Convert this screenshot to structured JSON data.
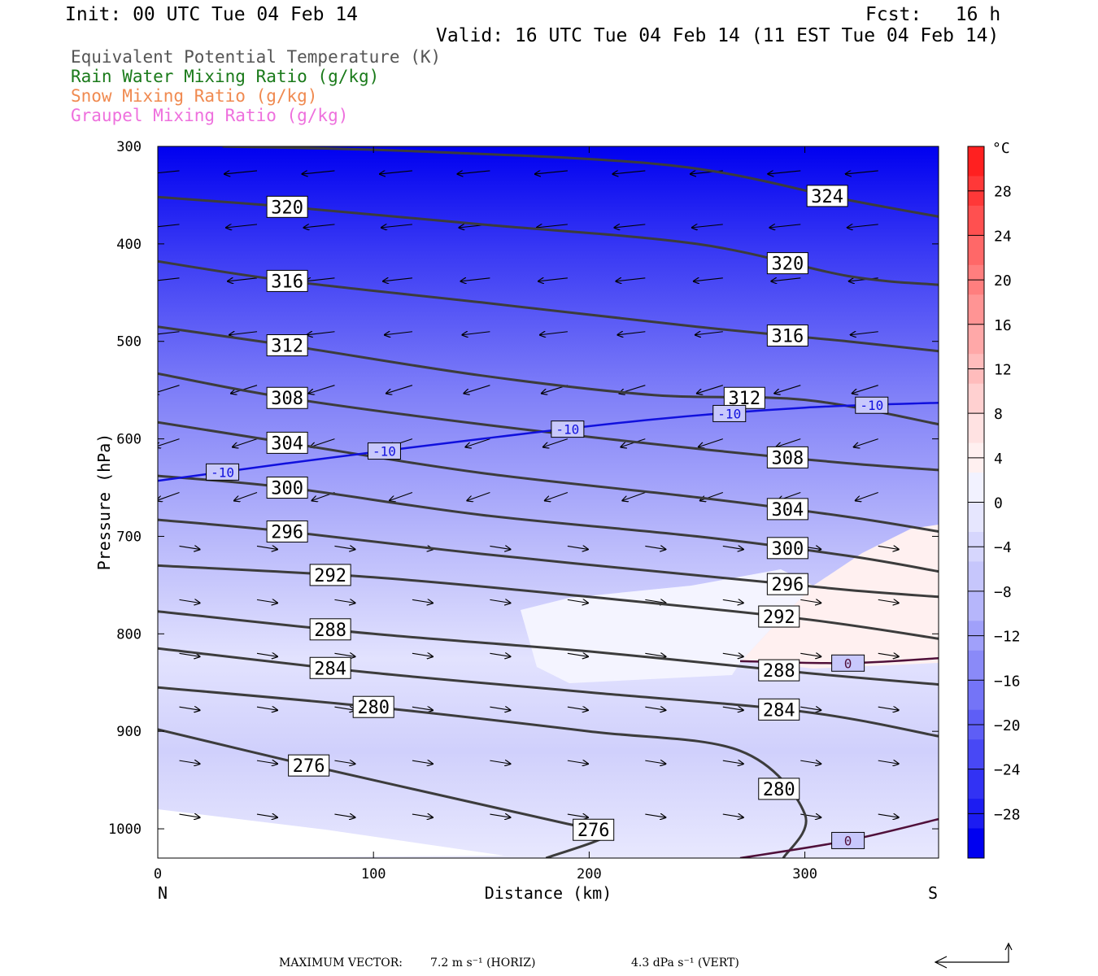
{
  "header": {
    "init": "Init: 00 UTC Tue 04 Feb 14",
    "fcst": "Fcst:   16 h",
    "valid": "Valid: 16 UTC Tue 04 Feb 14 (11 EST Tue 04 Feb 14)"
  },
  "legend": [
    {
      "label": "Equivalent Potential Temperature (K)",
      "color": "#555555"
    },
    {
      "label": "Rain Water Mixing Ratio (g/kg)",
      "color": "#1a7a1a"
    },
    {
      "label": "Snow Mixing Ratio (g/kg)",
      "color": "#f08a50"
    },
    {
      "label": "Graupel Mixing Ratio (g/kg)",
      "color": "#ee70dd"
    }
  ],
  "chart_data": {
    "type": "cross-section",
    "xlabel": "Distance (km)",
    "ylabel": "Pressure (hPa)",
    "x_ticks": [
      0,
      100,
      200,
      300
    ],
    "xlim": [
      0,
      362
    ],
    "y_ticks": [
      300,
      400,
      500,
      600,
      700,
      800,
      900,
      1000
    ],
    "ylim": [
      300,
      1030
    ],
    "end_labels": {
      "left": "N",
      "right": "S"
    },
    "colorbar": {
      "unit": "°C",
      "ticks": [
        28,
        24,
        20,
        16,
        12,
        8,
        4,
        0,
        -4,
        -8,
        -12,
        -16,
        -20,
        -24,
        -28
      ],
      "range": [
        -32,
        32
      ],
      "colors": [
        "#0000f0",
        "#1c1cf2",
        "#3232f4",
        "#4848f5",
        "#5e5ef6",
        "#7474f7",
        "#8a8af8",
        "#a0a0fa",
        "#b6b6fb",
        "#c6c6fc",
        "#d6d6fd",
        "#e6e6fe",
        "#f2f2ff",
        "#fff0f0",
        "#ffe2e2",
        "#ffd0d0",
        "#ffbcbc",
        "#ffa8a8",
        "#ff9494",
        "#ff7e7e",
        "#ff6868",
        "#ff5050",
        "#ff3838",
        "#ff2020"
      ]
    },
    "theta_e_contours": [
      {
        "label": "324",
        "points": [
          [
            30,
            300
          ],
          [
            120,
            305
          ],
          [
            240,
            320
          ],
          [
            320,
            355
          ],
          [
            362,
            372
          ]
        ]
      },
      {
        "label": "320",
        "points": [
          [
            0,
            352
          ],
          [
            60,
            362
          ],
          [
            150,
            380
          ],
          [
            250,
            400
          ],
          [
            320,
            433
          ],
          [
            362,
            442
          ]
        ]
      },
      {
        "label": "316",
        "points": [
          [
            0,
            418
          ],
          [
            60,
            438
          ],
          [
            150,
            460
          ],
          [
            250,
            485
          ],
          [
            320,
            500
          ],
          [
            362,
            510
          ]
        ]
      },
      {
        "label": "312",
        "points": [
          [
            0,
            485
          ],
          [
            60,
            504
          ],
          [
            150,
            535
          ],
          [
            230,
            555
          ],
          [
            300,
            560
          ],
          [
            362,
            585
          ]
        ]
      },
      {
        "label": "308",
        "points": [
          [
            0,
            533
          ],
          [
            60,
            558
          ],
          [
            150,
            585
          ],
          [
            250,
            610
          ],
          [
            320,
            625
          ],
          [
            362,
            632
          ]
        ]
      },
      {
        "label": "304",
        "points": [
          [
            0,
            583
          ],
          [
            60,
            604
          ],
          [
            150,
            635
          ],
          [
            250,
            660
          ],
          [
            320,
            680
          ],
          [
            362,
            695
          ]
        ]
      },
      {
        "label": "300",
        "points": [
          [
            0,
            638
          ],
          [
            60,
            650
          ],
          [
            150,
            678
          ],
          [
            250,
            700
          ],
          [
            320,
            720
          ],
          [
            362,
            736
          ]
        ]
      },
      {
        "label": "296",
        "points": [
          [
            0,
            683
          ],
          [
            60,
            695
          ],
          [
            150,
            718
          ],
          [
            250,
            740
          ],
          [
            320,
            755
          ],
          [
            362,
            762
          ]
        ]
      },
      {
        "label": "292",
        "points": [
          [
            0,
            730
          ],
          [
            100,
            742
          ],
          [
            200,
            762
          ],
          [
            300,
            785
          ],
          [
            362,
            805
          ]
        ]
      },
      {
        "label": "288",
        "points": [
          [
            0,
            777
          ],
          [
            100,
            800
          ],
          [
            200,
            818
          ],
          [
            300,
            840
          ],
          [
            362,
            852
          ]
        ]
      },
      {
        "label": "284",
        "points": [
          [
            0,
            815
          ],
          [
            100,
            840
          ],
          [
            200,
            860
          ],
          [
            300,
            880
          ],
          [
            362,
            905
          ]
        ]
      },
      {
        "label": "280",
        "points": [
          [
            0,
            855
          ],
          [
            100,
            875
          ],
          [
            200,
            900
          ],
          [
            270,
            920
          ],
          [
            300,
            985
          ],
          [
            290,
            1030
          ]
        ]
      },
      {
        "label": "276",
        "points": [
          [
            0,
            898
          ],
          [
            70,
            935
          ],
          [
            130,
            965
          ],
          [
            190,
            995
          ],
          [
            210,
            1005
          ],
          [
            180,
            1030
          ]
        ]
      }
    ],
    "temp_contours": [
      {
        "label": "-10",
        "points": [
          [
            0,
            643
          ],
          [
            60,
            625
          ],
          [
            150,
            600
          ],
          [
            230,
            580
          ],
          [
            300,
            568
          ],
          [
            362,
            563
          ]
        ]
      },
      {
        "label": "0",
        "points": [
          [
            270,
            828
          ],
          [
            320,
            830
          ],
          [
            362,
            825
          ]
        ]
      },
      {
        "label": "0",
        "points": [
          [
            270,
            1030
          ],
          [
            320,
            1012
          ],
          [
            362,
            990
          ]
        ]
      }
    ],
    "footer": {
      "max_vector_label": "MAXIMUM VECTOR:",
      "horiz": "7.2 m s⁻¹ (HORIZ)",
      "vert": "4.3 dPa s⁻¹ (VERT)"
    }
  }
}
